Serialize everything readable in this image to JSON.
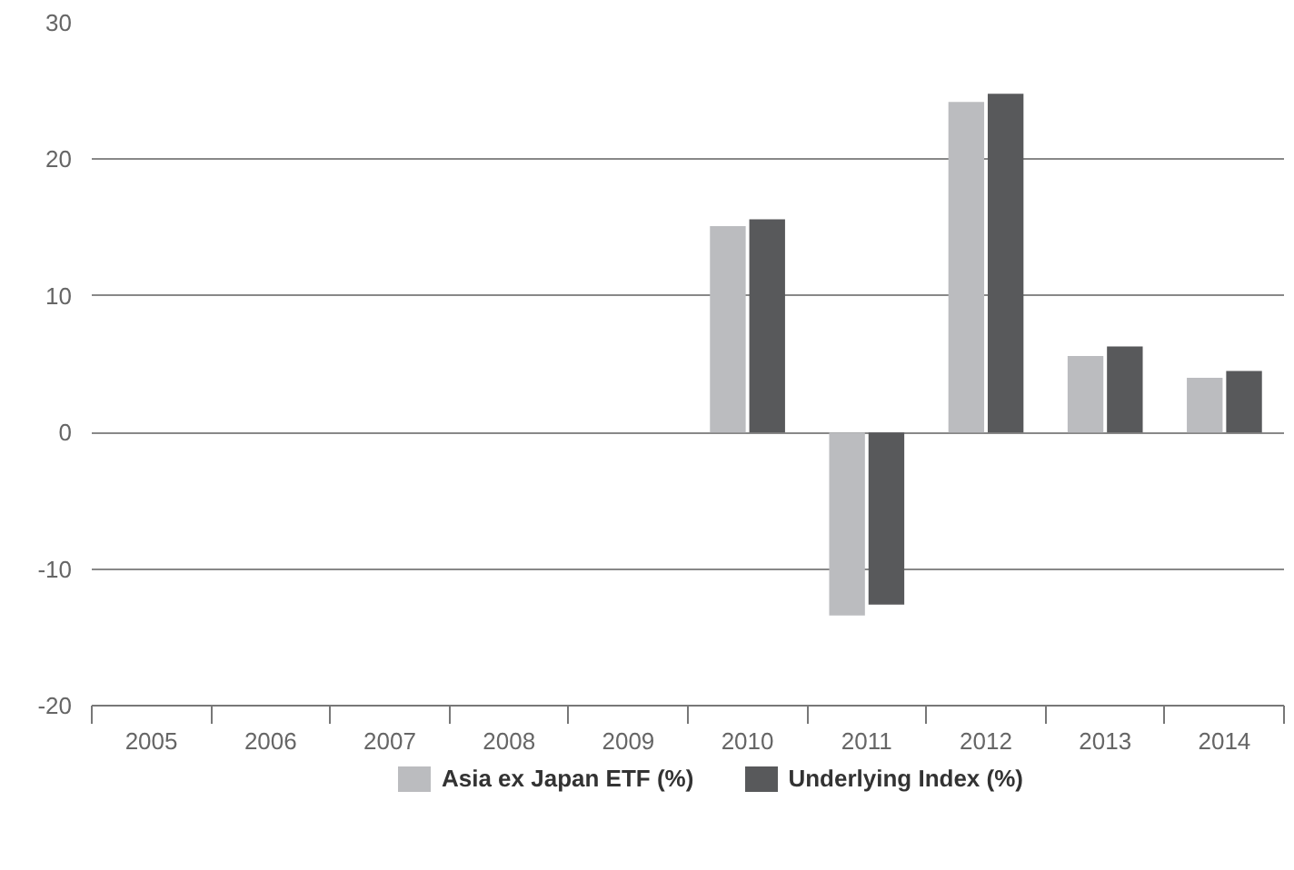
{
  "chart_data": {
    "type": "bar",
    "categories": [
      "2005",
      "2006",
      "2007",
      "2008",
      "2009",
      "2010",
      "2011",
      "2012",
      "2013",
      "2014"
    ],
    "series": [
      {
        "name": "Asia ex Japan ETF (%)",
        "color": "#bbbcbf",
        "values": [
          null,
          null,
          null,
          null,
          null,
          15.1,
          -13.4,
          24.2,
          5.6,
          4.0
        ]
      },
      {
        "name": "Underlying Index (%)",
        "color": "#58595b",
        "values": [
          null,
          null,
          null,
          null,
          null,
          15.6,
          -12.6,
          24.8,
          6.3,
          4.5
        ]
      }
    ],
    "ylim": [
      -20,
      30
    ],
    "yticks": [
      -20,
      -10,
      0,
      10,
      20,
      30
    ],
    "grid": "y",
    "legend": "bottom"
  }
}
